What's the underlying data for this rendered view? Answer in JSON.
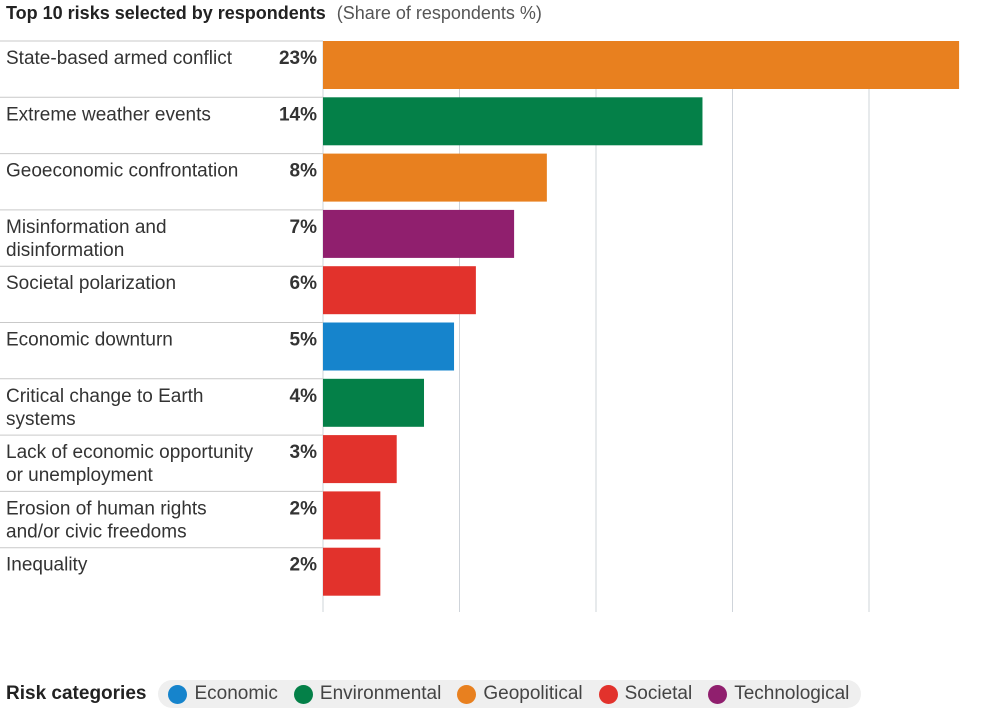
{
  "title": "Top 10 risks selected by respondents",
  "subtitle": "(Share of respondents %)",
  "colors": {
    "Economic": "#1684cc",
    "Environmental": "#048048",
    "Geopolitical": "#e8801f",
    "Societal": "#e2322c",
    "Technological": "#901f6e"
  },
  "chart_data": {
    "type": "bar",
    "orientation": "horizontal",
    "categories": [
      [
        "State-based armed conflict"
      ],
      [
        "Extreme weather events"
      ],
      [
        "Geoeconomic confrontation"
      ],
      [
        "Misinformation and",
        "disinformation"
      ],
      [
        "Societal polarization"
      ],
      [
        "Economic downturn"
      ],
      [
        "Critical change to Earth",
        "systems"
      ],
      [
        "Lack of economic opportunity",
        "or unemployment"
      ],
      [
        "Erosion of human rights",
        "and/or civic freedoms"
      ],
      [
        "Inequality"
      ]
    ],
    "values": [
      23.3,
      13.9,
      8.2,
      7.0,
      5.6,
      4.8,
      3.7,
      2.7,
      2.1,
      2.1
    ],
    "value_labels": [
      "23%",
      "14%",
      "8%",
      "7%",
      "6%",
      "5%",
      "4%",
      "3%",
      "2%",
      "2%"
    ],
    "risk_category": [
      "Geopolitical",
      "Environmental",
      "Geopolitical",
      "Technological",
      "Societal",
      "Economic",
      "Environmental",
      "Societal",
      "Societal",
      "Societal"
    ],
    "xlim": [
      0,
      25
    ],
    "grid": true
  },
  "legend": {
    "title": "Risk categories",
    "items": [
      {
        "label": "Economic",
        "color": "#1684cc"
      },
      {
        "label": "Environmental",
        "color": "#048048"
      },
      {
        "label": "Geopolitical",
        "color": "#e8801f"
      },
      {
        "label": "Societal",
        "color": "#e2322c"
      },
      {
        "label": "Technological",
        "color": "#901f6e"
      }
    ]
  }
}
